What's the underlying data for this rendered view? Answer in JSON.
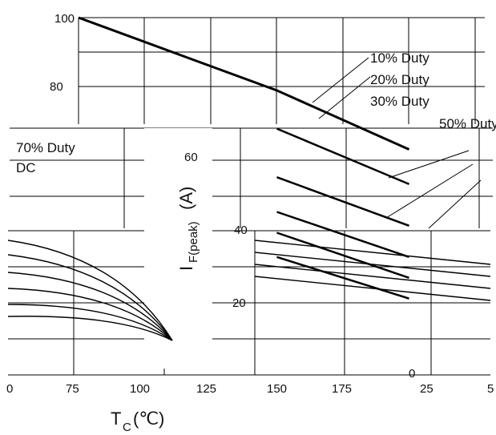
{
  "chart_data": {
    "type": "line",
    "xlabel_main": "T",
    "xlabel_sub": "C",
    "xlabel_unit": "(℃)",
    "ylabel_main": "I",
    "ylabel_sub": "F(peak)",
    "ylabel_unit": "(A)",
    "y_ticks": [
      "100",
      "80",
      "60",
      "40",
      "20",
      "0"
    ],
    "x_ticks": [
      "0",
      "75",
      "100",
      "125",
      "150",
      "175",
      "25",
      "5"
    ],
    "legend": [
      "10% Duty",
      "20% Duty",
      "30% Duty",
      "50% Duty",
      "70% Duty",
      "DC"
    ],
    "series": [
      {
        "name": "10% Duty",
        "x": [
          25,
          100,
          150
        ],
        "y": [
          100,
          79,
          62
        ]
      },
      {
        "name": "20% Duty",
        "x": [
          100,
          150
        ],
        "y": [
          68,
          52
        ]
      },
      {
        "name": "30% Duty",
        "x": [
          100,
          150
        ],
        "y": [
          54,
          40
        ]
      },
      {
        "name": "50% Duty",
        "x": [
          100,
          150
        ],
        "y": [
          44,
          31
        ]
      },
      {
        "name": "70% Duty",
        "x": [
          100,
          150
        ],
        "y": [
          38,
          25
        ]
      },
      {
        "name": "DC",
        "x": [
          100,
          150
        ],
        "y": [
          31,
          19
        ]
      }
    ],
    "grid": true
  }
}
